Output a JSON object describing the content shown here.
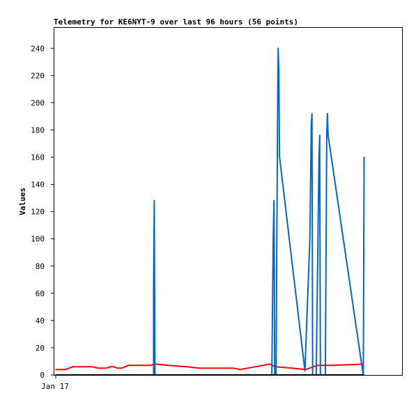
{
  "chart_data": {
    "type": "line",
    "title": "Telemetry for KE6NYT-9 over last 96 hours (56 points)",
    "ylabel": "Values",
    "xlabel": "",
    "ylim": [
      0,
      255
    ],
    "yticks": [
      0,
      20,
      40,
      60,
      80,
      100,
      120,
      140,
      160,
      180,
      200,
      220,
      240
    ],
    "x_tick_labels": [
      {
        "x": 0,
        "label": "Jan 17"
      }
    ],
    "xlim": [
      -2,
      492
    ],
    "grid": false,
    "legend": "none",
    "series": [
      {
        "color": "#ff0000",
        "points": [
          [
            0,
            4
          ],
          [
            14,
            4
          ],
          [
            24,
            6
          ],
          [
            51,
            6
          ],
          [
            60,
            5
          ],
          [
            72,
            5
          ],
          [
            77,
            6
          ],
          [
            82,
            6
          ],
          [
            88,
            5
          ],
          [
            94,
            5
          ],
          [
            103,
            7
          ],
          [
            134,
            7
          ],
          [
            141,
            8
          ],
          [
            160,
            7
          ],
          [
            186,
            6
          ],
          [
            204,
            5
          ],
          [
            252,
            5
          ],
          [
            262,
            4
          ],
          [
            283,
            6
          ],
          [
            304,
            8
          ],
          [
            312,
            6
          ],
          [
            336,
            5
          ],
          [
            355,
            4
          ],
          [
            366,
            6
          ],
          [
            372,
            7
          ],
          [
            384,
            7
          ],
          [
            392,
            7
          ],
          [
            416,
            7.5
          ],
          [
            437,
            8
          ]
        ]
      },
      {
        "color": "#0066cc",
        "points": [
          [
            139,
            0
          ],
          [
            139,
            64
          ],
          [
            140,
            128
          ],
          [
            141,
            0
          ],
          [
            307,
            0
          ],
          [
            309,
            100
          ],
          [
            310,
            128
          ],
          [
            311,
            0
          ],
          [
            313,
            0
          ],
          [
            315,
            180
          ],
          [
            316,
            240
          ],
          [
            317,
            220
          ],
          [
            318,
            160
          ],
          [
            354,
            3
          ],
          [
            361,
            100
          ],
          [
            363,
            183
          ],
          [
            364,
            192
          ],
          [
            365,
            0
          ],
          [
            370,
            0
          ],
          [
            374,
            160
          ],
          [
            375,
            176
          ],
          [
            376,
            0
          ],
          [
            383,
            0
          ],
          [
            385,
            176
          ],
          [
            386,
            192
          ],
          [
            387,
            176
          ],
          [
            436,
            3
          ],
          [
            437,
            0
          ],
          [
            438,
            160
          ]
        ]
      },
      {
        "color": "#000000",
        "points": [
          [
            0,
            0
          ],
          [
            438,
            0
          ]
        ]
      }
    ]
  }
}
